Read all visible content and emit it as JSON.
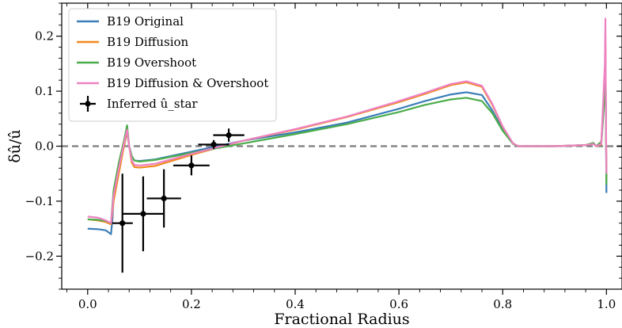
{
  "chart_data": {
    "type": "line",
    "xlabel": "Fractional Radius",
    "ylabel": "δû/û",
    "xlim": [
      -0.05,
      1.03
    ],
    "ylim": [
      -0.26,
      0.26
    ],
    "xticks": [
      0.0,
      0.2,
      0.4,
      0.6,
      0.8,
      1.0
    ],
    "xtick_labels": [
      "0.0",
      "0.2",
      "0.4",
      "0.6",
      "0.8",
      "1.0"
    ],
    "yticks": [
      -0.2,
      -0.1,
      0.0,
      0.1,
      0.2
    ],
    "ytick_labels": [
      "−0.2",
      "−0.1",
      "0.0",
      "0.1",
      "0.2"
    ],
    "reference_line_y": 0.0,
    "legend_position": "upper-left",
    "series": [
      {
        "name": "B19 Original",
        "color": "#3a7db8",
        "points": [
          [
            0.0,
            -0.15
          ],
          [
            0.02,
            -0.151
          ],
          [
            0.035,
            -0.153
          ],
          [
            0.045,
            -0.16
          ],
          [
            0.048,
            -0.13
          ],
          [
            0.05,
            -0.085
          ],
          [
            0.06,
            -0.04
          ],
          [
            0.07,
            0.0
          ],
          [
            0.076,
            0.026
          ],
          [
            0.08,
            0.0
          ],
          [
            0.085,
            -0.018
          ],
          [
            0.09,
            -0.026
          ],
          [
            0.1,
            -0.027
          ],
          [
            0.13,
            -0.024
          ],
          [
            0.2,
            -0.01
          ],
          [
            0.3,
            0.01
          ],
          [
            0.4,
            0.025
          ],
          [
            0.5,
            0.043
          ],
          [
            0.6,
            0.068
          ],
          [
            0.65,
            0.082
          ],
          [
            0.7,
            0.094
          ],
          [
            0.73,
            0.098
          ],
          [
            0.76,
            0.093
          ],
          [
            0.78,
            0.065
          ],
          [
            0.8,
            0.03
          ],
          [
            0.82,
            0.005
          ],
          [
            0.83,
            0.0
          ],
          [
            0.9,
            0.0
          ],
          [
            0.96,
            0.002
          ],
          [
            0.975,
            0.005
          ],
          [
            0.98,
            0.0
          ],
          [
            0.99,
            0.003
          ],
          [
            0.997,
            0.1
          ],
          [
            0.998,
            0.18
          ],
          [
            0.999,
            0.05
          ],
          [
            1.0,
            -0.085
          ]
        ]
      },
      {
        "name": "B19 Diffusion",
        "color": "#f08a1c",
        "points": [
          [
            0.0,
            -0.133
          ],
          [
            0.02,
            -0.135
          ],
          [
            0.035,
            -0.138
          ],
          [
            0.045,
            -0.142
          ],
          [
            0.05,
            -0.1
          ],
          [
            0.06,
            -0.05
          ],
          [
            0.07,
            0.0
          ],
          [
            0.076,
            0.028
          ],
          [
            0.08,
            0.0
          ],
          [
            0.085,
            -0.03
          ],
          [
            0.09,
            -0.038
          ],
          [
            0.1,
            -0.039
          ],
          [
            0.13,
            -0.036
          ],
          [
            0.2,
            -0.016
          ],
          [
            0.3,
            0.01
          ],
          [
            0.4,
            0.03
          ],
          [
            0.5,
            0.053
          ],
          [
            0.6,
            0.08
          ],
          [
            0.65,
            0.095
          ],
          [
            0.7,
            0.111
          ],
          [
            0.73,
            0.116
          ],
          [
            0.76,
            0.108
          ],
          [
            0.78,
            0.075
          ],
          [
            0.8,
            0.035
          ],
          [
            0.82,
            0.005
          ],
          [
            0.83,
            0.0
          ],
          [
            0.9,
            0.0
          ],
          [
            0.96,
            0.002
          ],
          [
            0.975,
            0.004
          ],
          [
            0.98,
            0.0
          ],
          [
            0.99,
            0.003
          ],
          [
            0.997,
            0.12
          ],
          [
            0.998,
            0.2
          ],
          [
            0.999,
            0.05
          ],
          [
            1.0,
            -0.06
          ]
        ]
      },
      {
        "name": "B19 Overshoot",
        "color": "#4aad4a",
        "points": [
          [
            0.0,
            -0.133
          ],
          [
            0.02,
            -0.134
          ],
          [
            0.035,
            -0.136
          ],
          [
            0.045,
            -0.14
          ],
          [
            0.05,
            -0.08
          ],
          [
            0.06,
            -0.03
          ],
          [
            0.07,
            0.01
          ],
          [
            0.076,
            0.038
          ],
          [
            0.08,
            0.0
          ],
          [
            0.085,
            -0.018
          ],
          [
            0.09,
            -0.026
          ],
          [
            0.1,
            -0.028
          ],
          [
            0.13,
            -0.025
          ],
          [
            0.2,
            -0.012
          ],
          [
            0.3,
            0.005
          ],
          [
            0.4,
            0.022
          ],
          [
            0.5,
            0.04
          ],
          [
            0.6,
            0.062
          ],
          [
            0.65,
            0.075
          ],
          [
            0.7,
            0.085
          ],
          [
            0.73,
            0.088
          ],
          [
            0.76,
            0.082
          ],
          [
            0.78,
            0.06
          ],
          [
            0.8,
            0.028
          ],
          [
            0.82,
            0.004
          ],
          [
            0.83,
            0.0
          ],
          [
            0.9,
            0.0
          ],
          [
            0.96,
            0.002
          ],
          [
            0.975,
            0.006
          ],
          [
            0.98,
            0.0
          ],
          [
            0.99,
            0.008
          ],
          [
            0.997,
            0.1
          ],
          [
            0.998,
            0.16
          ],
          [
            0.999,
            0.04
          ],
          [
            1.0,
            -0.07
          ]
        ]
      },
      {
        "name": "B19 Diffusion & Overshoot",
        "color": "#ee82c2",
        "points": [
          [
            0.0,
            -0.128
          ],
          [
            0.02,
            -0.13
          ],
          [
            0.035,
            -0.135
          ],
          [
            0.045,
            -0.14
          ],
          [
            0.05,
            -0.09
          ],
          [
            0.06,
            -0.04
          ],
          [
            0.07,
            0.005
          ],
          [
            0.076,
            0.03
          ],
          [
            0.08,
            0.0
          ],
          [
            0.085,
            -0.026
          ],
          [
            0.09,
            -0.034
          ],
          [
            0.1,
            -0.035
          ],
          [
            0.13,
            -0.032
          ],
          [
            0.2,
            -0.014
          ],
          [
            0.3,
            0.01
          ],
          [
            0.4,
            0.031
          ],
          [
            0.5,
            0.054
          ],
          [
            0.6,
            0.082
          ],
          [
            0.65,
            0.097
          ],
          [
            0.7,
            0.113
          ],
          [
            0.73,
            0.118
          ],
          [
            0.76,
            0.11
          ],
          [
            0.78,
            0.077
          ],
          [
            0.8,
            0.036
          ],
          [
            0.82,
            0.005
          ],
          [
            0.83,
            0.0
          ],
          [
            0.9,
            0.0
          ],
          [
            0.96,
            0.002
          ],
          [
            0.975,
            0.004
          ],
          [
            0.98,
            0.0
          ],
          [
            0.99,
            0.004
          ],
          [
            0.997,
            0.15
          ],
          [
            0.998,
            0.232
          ],
          [
            0.999,
            0.06
          ],
          [
            1.0,
            -0.05
          ]
        ]
      }
    ],
    "errorbar_series": {
      "name": "Inferred û_star",
      "color": "#000000",
      "points": [
        {
          "x": 0.067,
          "y": -0.14,
          "xerr": 0.02,
          "yerr": 0.09
        },
        {
          "x": 0.107,
          "y": -0.123,
          "xerr": 0.04,
          "yerr": 0.068
        },
        {
          "x": 0.147,
          "y": -0.095,
          "xerr": 0.033,
          "yerr": 0.053
        },
        {
          "x": 0.2,
          "y": -0.035,
          "xerr": 0.035,
          "yerr": 0.018
        },
        {
          "x": 0.243,
          "y": 0.003,
          "xerr": 0.03,
          "yerr": 0.008
        },
        {
          "x": 0.272,
          "y": 0.02,
          "xerr": 0.03,
          "yerr": 0.012
        }
      ]
    }
  }
}
